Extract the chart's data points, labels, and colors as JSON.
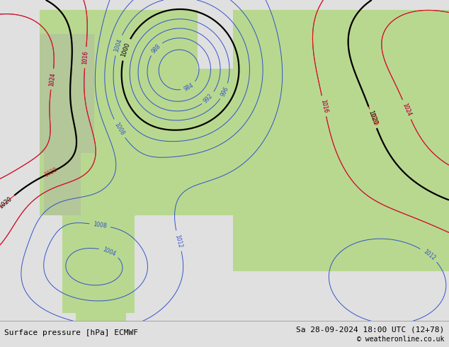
{
  "title_left": "Surface pressure [hPa] ECMWF",
  "title_right": "Sa 28-09-2024 18:00 UTC (12+78)",
  "copyright": "© weatheronline.co.uk",
  "bg_color": "#e0e0e0",
  "map_bg": "#c8dff0",
  "land_color": "#b8d890",
  "land_color2": "#a0c878",
  "mountain_color": "#b0b8a0"
}
